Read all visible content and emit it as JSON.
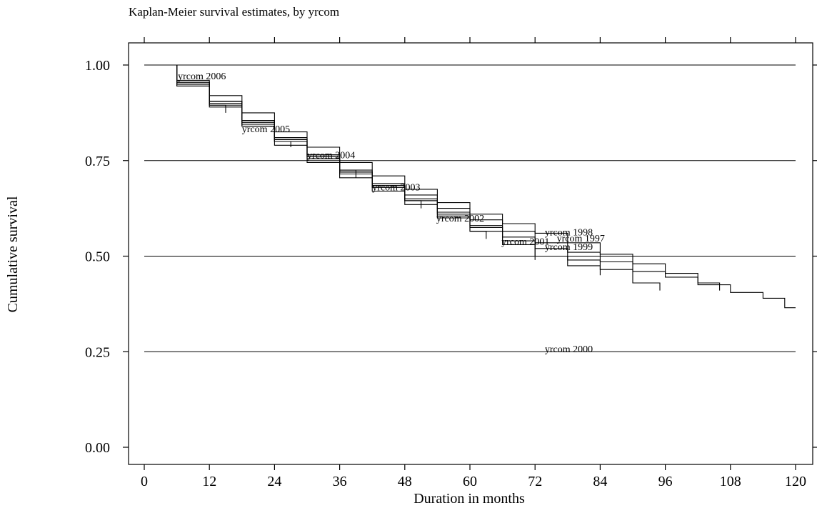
{
  "chart_data": {
    "type": "line",
    "title": "Kaplan-Meier survival estimates, by yrcom",
    "xlabel": "Duration in months",
    "ylabel": "Cumulative survival",
    "xlim": [
      0,
      120
    ],
    "ylim": [
      0,
      1
    ],
    "x_ticks": [
      0,
      12,
      24,
      36,
      48,
      60,
      72,
      84,
      96,
      108,
      120
    ],
    "y_ticks": [
      0.0,
      0.25,
      0.5,
      0.75,
      1.0
    ],
    "y_tick_labels": [
      "0.00",
      "0.25",
      "0.50",
      "0.75",
      "1.00"
    ],
    "grid": "horizontal",
    "step": true,
    "series": [
      {
        "name": "yrcom 1997",
        "x": [
          0,
          6,
          12,
          18,
          24,
          30,
          36,
          42,
          48,
          54,
          60,
          66,
          72,
          78,
          84,
          90,
          96,
          102,
          108,
          114,
          118,
          120
        ],
        "y": [
          1.0,
          0.955,
          0.905,
          0.855,
          0.805,
          0.765,
          0.725,
          0.69,
          0.66,
          0.625,
          0.595,
          0.565,
          0.535,
          0.51,
          0.485,
          0.46,
          0.445,
          0.425,
          0.405,
          0.39,
          0.365,
          0.365
        ]
      },
      {
        "name": "yrcom 1998",
        "x": [
          0,
          6,
          12,
          18,
          24,
          30,
          36,
          42,
          48,
          54,
          60,
          66,
          72,
          78,
          84,
          90,
          96,
          102,
          106
        ],
        "y": [
          1.0,
          0.96,
          0.92,
          0.875,
          0.825,
          0.785,
          0.745,
          0.71,
          0.675,
          0.64,
          0.61,
          0.585,
          0.56,
          0.535,
          0.505,
          0.48,
          0.455,
          0.43,
          0.41
        ]
      },
      {
        "name": "yrcom 1999",
        "x": [
          0,
          6,
          12,
          18,
          24,
          30,
          36,
          42,
          48,
          54,
          60,
          66,
          72,
          78,
          84,
          90,
          95
        ],
        "y": [
          1.0,
          0.955,
          0.905,
          0.855,
          0.805,
          0.76,
          0.72,
          0.685,
          0.65,
          0.615,
          0.58,
          0.55,
          0.52,
          0.49,
          0.465,
          0.43,
          0.41
        ]
      },
      {
        "name": "yrcom 2000",
        "x": [
          0,
          6,
          12,
          18,
          24,
          30,
          36,
          42,
          48,
          54,
          60,
          66,
          72,
          78,
          84
        ],
        "y": [
          1.0,
          0.95,
          0.9,
          0.85,
          0.8,
          0.755,
          0.715,
          0.68,
          0.645,
          0.61,
          0.575,
          0.54,
          0.5,
          0.475,
          0.45
        ]
      },
      {
        "name": "yrcom 2001",
        "x": [
          0,
          6,
          12,
          18,
          24,
          30,
          36,
          42,
          48,
          54,
          60,
          66,
          72
        ],
        "y": [
          1.0,
          0.95,
          0.895,
          0.84,
          0.79,
          0.745,
          0.705,
          0.67,
          0.635,
          0.6,
          0.565,
          0.53,
          0.49
        ]
      },
      {
        "name": "yrcom 2002",
        "x": [
          0,
          6,
          12,
          18,
          24,
          30,
          36,
          42,
          48,
          54,
          60,
          63
        ],
        "y": [
          1.0,
          0.955,
          0.9,
          0.845,
          0.8,
          0.755,
          0.72,
          0.68,
          0.645,
          0.605,
          0.565,
          0.545
        ]
      },
      {
        "name": "yrcom 2003",
        "x": [
          0,
          6,
          12,
          18,
          24,
          30,
          36,
          42,
          48,
          51
        ],
        "y": [
          1.0,
          0.955,
          0.905,
          0.855,
          0.805,
          0.76,
          0.72,
          0.685,
          0.645,
          0.625
        ]
      },
      {
        "name": "yrcom 2004",
        "x": [
          0,
          6,
          12,
          18,
          24,
          30,
          36,
          39
        ],
        "y": [
          1.0,
          0.95,
          0.9,
          0.855,
          0.81,
          0.765,
          0.725,
          0.705
        ]
      },
      {
        "name": "yrcom 2005",
        "x": [
          0,
          6,
          12,
          18,
          24,
          27
        ],
        "y": [
          1.0,
          0.945,
          0.89,
          0.84,
          0.8,
          0.785
        ]
      },
      {
        "name": "yrcom 2006",
        "x": [
          0,
          6,
          12,
          15
        ],
        "y": [
          1.0,
          0.945,
          0.895,
          0.875
        ]
      }
    ],
    "annotations": [
      {
        "text": "yrcom 2006",
        "x": 6.2,
        "y": 0.963
      },
      {
        "text": "yrcom 2005",
        "x": 18.0,
        "y": 0.824
      },
      {
        "text": "yrcom 2004",
        "x": 30.0,
        "y": 0.756
      },
      {
        "text": "yrcom 2003",
        "x": 42.0,
        "y": 0.672
      },
      {
        "text": "yrcom 2002",
        "x": 53.8,
        "y": 0.591
      },
      {
        "text": "yrcom 2001",
        "x": 65.8,
        "y": 0.53
      },
      {
        "text": "yrcom 1998",
        "x": 73.8,
        "y": 0.554
      },
      {
        "text": "yrcom 1997",
        "x": 76.0,
        "y": 0.538
      },
      {
        "text": "yrcom 1999",
        "x": 73.8,
        "y": 0.516
      },
      {
        "text": "yrcom 2000",
        "x": 73.8,
        "y": 0.249
      }
    ]
  }
}
